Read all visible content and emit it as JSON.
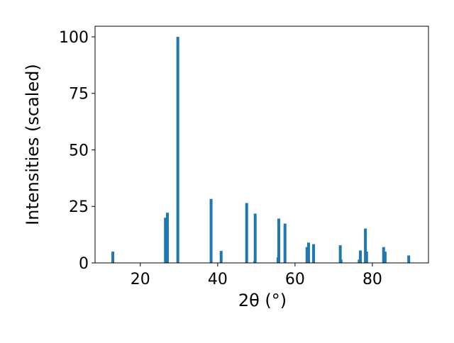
{
  "chart_data": {
    "type": "bar",
    "x_label": "2θ (°)",
    "y_label": "Intensities (scaled)",
    "x": [
      12.9,
      26.5,
      27.0,
      29.7,
      38.3,
      40.9,
      47.5,
      49.6,
      49.7,
      55.6,
      55.8,
      57.4,
      63.1,
      63.5,
      64.8,
      71.7,
      71.9,
      76.6,
      76.9,
      78.2,
      78.5,
      82.9,
      83.3,
      89.4
    ],
    "values": [
      5,
      20,
      22.2,
      100,
      28.3,
      5.3,
      26.5,
      1,
      21.8,
      2.5,
      19.6,
      17.4,
      7,
      9,
      8.3,
      7.8,
      1.5,
      1.5,
      5.5,
      15.2,
      5,
      7,
      5,
      3.3
    ],
    "color": "#1f77b4",
    "xlim": [
      8.3,
      94.5
    ],
    "xticks": [
      20,
      40,
      60,
      80
    ],
    "ylim": [
      0,
      104.7
    ],
    "yticks": [
      0,
      25,
      50,
      75,
      100
    ]
  }
}
